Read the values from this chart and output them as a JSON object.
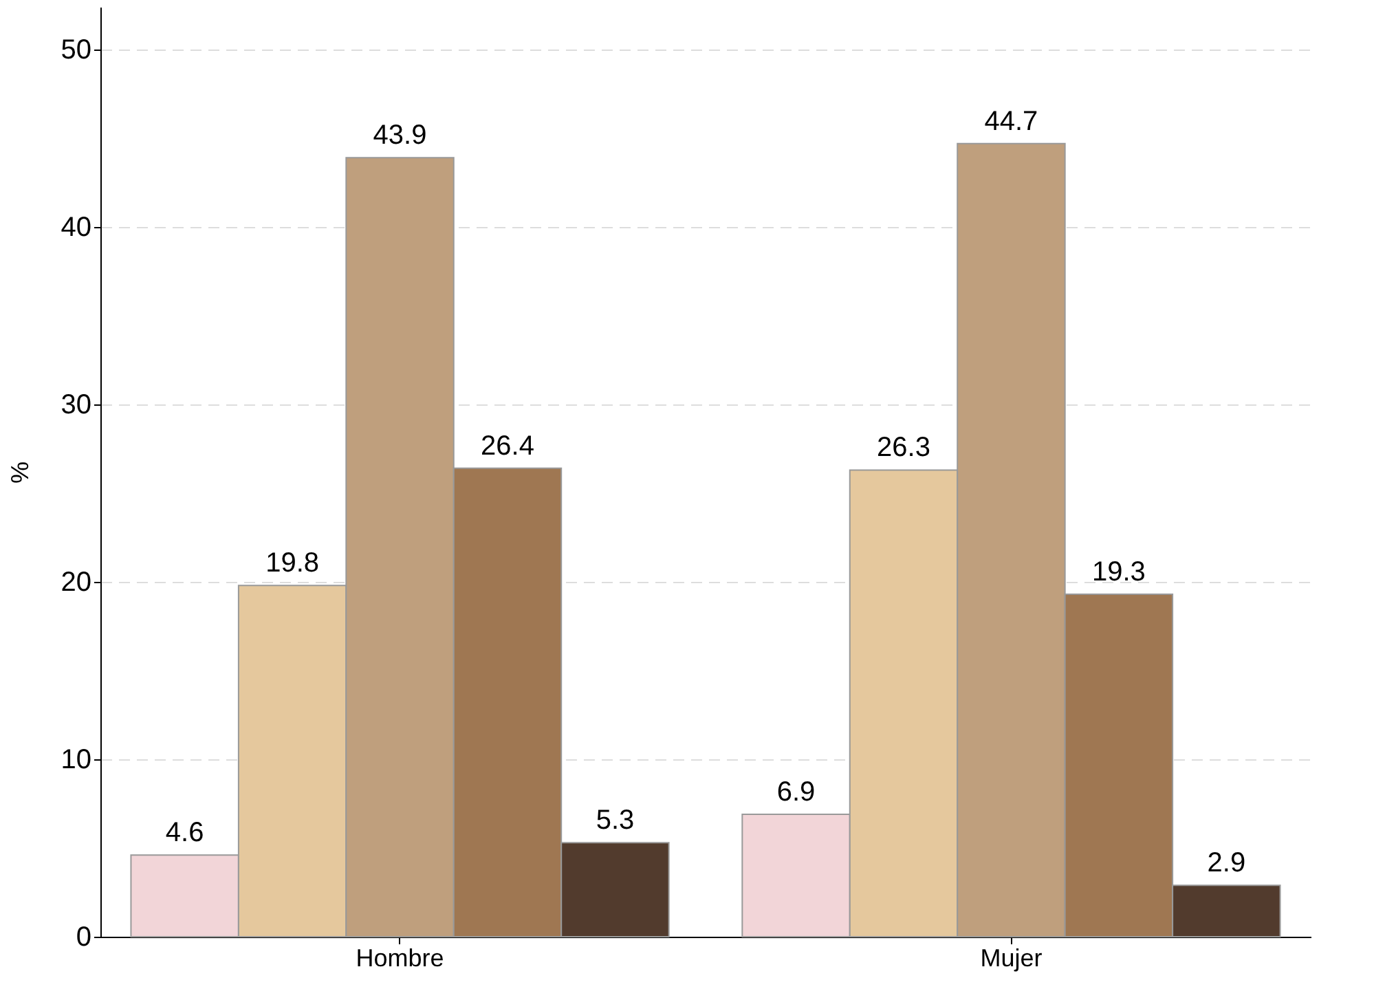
{
  "chart_data": {
    "type": "bar",
    "ylabel": "%",
    "categories": [
      "Hombre",
      "Mujer"
    ],
    "series": [
      {
        "color": "#f2d5d8",
        "values": [
          4.6,
          6.9
        ]
      },
      {
        "color": "#e5c89d",
        "values": [
          19.8,
          26.3
        ]
      },
      {
        "color": "#bf9f7d",
        "values": [
          43.9,
          44.7
        ]
      },
      {
        "color": "#9f7752",
        "values": [
          26.4,
          19.3
        ]
      },
      {
        "color": "#523b2d",
        "values": [
          5.3,
          2.9
        ]
      }
    ],
    "ylim": [
      0,
      52.4
    ],
    "yticks": [
      0,
      10,
      20,
      30,
      40,
      50
    ],
    "grid": "y",
    "data_labels": true,
    "legend": false
  }
}
